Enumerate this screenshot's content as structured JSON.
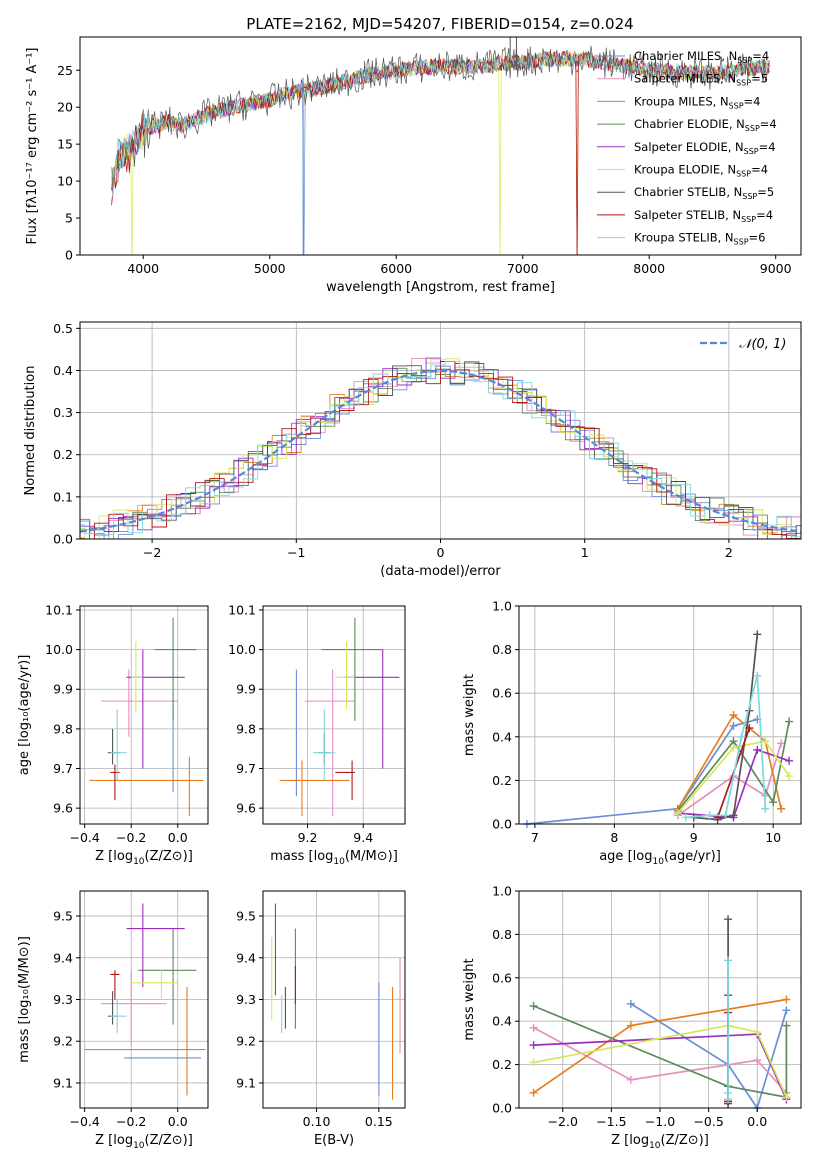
{
  "figure_title": "PLATE=2162, MJD=54207, FIBERID=0154, z=0.024",
  "colors": {
    "Chabrier MILES": "#6b8fd6",
    "Salpeter MILES": "#e58fc0",
    "Kroupa MILES": "#e87d1e",
    "Chabrier ELODIE": "#5c8a5c",
    "Salpeter ELODIE": "#9a2fbf",
    "Kroupa ELODIE": "#d6e85a",
    "Chabrier STELIB": "#555555",
    "Salpeter STELIB": "#b01818",
    "Kroupa STELIB": "#7fd8e0",
    "normal_fit": "#5588dd"
  },
  "chart_data": [
    {
      "id": "spectrum",
      "type": "line",
      "xlabel": "wavelength [Angstrom, rest frame]",
      "ylabel": "Flux [fλ10⁻¹⁷ erg cm⁻² s⁻¹ A⁻¹]",
      "xlim": [
        3500,
        9200
      ],
      "ylim": [
        0,
        29.5
      ],
      "xticks": [
        "4000",
        "5000",
        "6000",
        "7000",
        "8000",
        "9000"
      ],
      "yticks": [
        "0",
        "5",
        "10",
        "15",
        "20",
        "25"
      ],
      "legend": "right",
      "grid": false,
      "envelope": {
        "x": [
          3750,
          3800,
          3900,
          4000,
          4100,
          4200,
          4300,
          4500,
          4700,
          5000,
          5200,
          5500,
          5800,
          6000,
          6300,
          6600,
          6900,
          7200,
          7500,
          8000,
          8500,
          8900
        ],
        "y": [
          9,
          13,
          14,
          17,
          17.5,
          18,
          17.5,
          19,
          20,
          21,
          22,
          23,
          24.5,
          25,
          25.5,
          25.5,
          26,
          26.5,
          26.5,
          25,
          24.5,
          25.5
        ]
      },
      "series": [
        {
          "name": "Chabrier MILES, N_SSP=4",
          "name_base": "Chabrier MILES, N",
          "name_sub": "SSP",
          "name_val": "=4"
        },
        {
          "name": "Salpeter MILES, N_SSP=5",
          "name_base": "Salpeter MILES, N",
          "name_sub": "SSP",
          "name_val": "=5"
        },
        {
          "name": "Kroupa MILES, N_SSP=4",
          "name_base": "Kroupa MILES, N",
          "name_sub": "SSP",
          "name_val": "=4"
        },
        {
          "name": "Chabrier ELODIE, N_SSP=4",
          "name_base": "Chabrier ELODIE, N",
          "name_sub": "SSP",
          "name_val": "=4"
        },
        {
          "name": "Salpeter ELODIE, N_SSP=4",
          "name_base": "Salpeter ELODIE, N",
          "name_sub": "SSP",
          "name_val": "=4"
        },
        {
          "name": "Kroupa ELODIE, N_SSP=4",
          "name_base": "Kroupa ELODIE, N",
          "name_sub": "SSP",
          "name_val": "=4"
        },
        {
          "name": "Chabrier STELIB, N_SSP=5",
          "name_base": "Chabrier STELIB, N",
          "name_sub": "SSP",
          "name_val": "=5"
        },
        {
          "name": "Salpeter STELIB, N_SSP=4",
          "name_base": "Salpeter STELIB, N",
          "name_sub": "SSP",
          "name_val": "=4"
        },
        {
          "name": "Kroupa STELIB, N_SSP=6",
          "name_base": "Kroupa STELIB, N",
          "name_sub": "SSP",
          "name_val": "=6"
        }
      ]
    },
    {
      "id": "residuals",
      "type": "histogram",
      "xlabel": "(data-model)/error",
      "ylabel": "Normed distribution",
      "xlim": [
        -2.5,
        2.5
      ],
      "ylim": [
        0,
        0.515
      ],
      "xticks": [
        "−2",
        "−1",
        "0",
        "1",
        "2"
      ],
      "yticks": [
        "0.0",
        "0.1",
        "0.2",
        "0.3",
        "0.4",
        "0.5"
      ],
      "grid": true,
      "legend": "top-right",
      "reference": {
        "name": "𝒩(0, 1)",
        "mean": 0,
        "sigma": 1
      },
      "bin_width": 0.1
    },
    {
      "id": "age_vs_Z",
      "type": "errorbar",
      "xlabel_pre": "Z [log",
      "xlabel_sub": "10",
      "xlabel_post": "(Z/Z⊙)]",
      "ylabel": "age  [log₁₀(age/yr)]",
      "xlim": [
        -0.42,
        0.13
      ],
      "ylim": [
        9.56,
        10.11
      ],
      "xticks": [
        -0.4,
        -0.2,
        0.0
      ],
      "xtick_labels": [
        "−0.4",
        "−0.2",
        "0.0"
      ],
      "yticks": [
        9.6,
        9.7,
        9.8,
        9.9,
        10.0,
        10.1
      ],
      "ytick_labels": [
        "9.6",
        "9.7",
        "9.8",
        "9.9",
        "10.0",
        "10.1"
      ],
      "grid": true,
      "points": [
        {
          "series": "Chabrier MILES",
          "x": -0.02,
          "y": 9.73,
          "xl": 0.0,
          "xh": 0.0,
          "yl": 9.64,
          "yh": 9.86
        },
        {
          "series": "Salpeter MILES",
          "x": -0.21,
          "y": 9.87,
          "xl": -0.33,
          "xh": 0.0,
          "yl": 9.78,
          "yh": 9.95
        },
        {
          "series": "Kroupa MILES",
          "x": 0.05,
          "y": 9.67,
          "xl": -0.38,
          "xh": 0.11,
          "yl": 9.58,
          "yh": 9.73
        },
        {
          "series": "Chabrier ELODIE",
          "x": -0.02,
          "y": 10.0,
          "xl": -0.1,
          "xh": 0.08,
          "yl": 9.82,
          "yh": 10.08
        },
        {
          "series": "Salpeter ELODIE",
          "x": -0.15,
          "y": 9.93,
          "xl": -0.22,
          "xh": 0.03,
          "yl": 9.7,
          "yh": 10.0
        },
        {
          "series": "Kroupa ELODIE",
          "x": -0.18,
          "y": 9.93,
          "xl": -0.2,
          "xh": -0.15,
          "yl": 9.84,
          "yh": 10.02
        },
        {
          "series": "Chabrier STELIB",
          "x": -0.28,
          "y": 9.74,
          "xl": -0.3,
          "xh": -0.25,
          "yl": 9.71,
          "yh": 9.8
        },
        {
          "series": "Salpeter STELIB",
          "x": -0.27,
          "y": 9.69,
          "xl": -0.29,
          "xh": -0.25,
          "yl": 9.62,
          "yh": 9.71
        },
        {
          "series": "Kroupa STELIB",
          "x": -0.26,
          "y": 9.74,
          "xl": -0.29,
          "xh": -0.22,
          "yl": 9.67,
          "yh": 9.85
        }
      ]
    },
    {
      "id": "age_vs_mass",
      "type": "errorbar",
      "xlabel_pre": "mass [log",
      "xlabel_sub": "10",
      "xlabel_post": "(M/M⊙)]",
      "ylabel": "",
      "xlim": [
        9.04,
        9.55
      ],
      "ylim": [
        9.56,
        10.11
      ],
      "xticks": [
        9.2,
        9.4
      ],
      "xtick_labels": [
        "9.2",
        "9.4"
      ],
      "yticks": [
        9.6,
        9.7,
        9.8,
        9.9,
        10.0,
        10.1
      ],
      "ytick_labels": [
        "9.6",
        "9.7",
        "9.8",
        "9.9",
        "10.0",
        "10.1"
      ],
      "grid": true,
      "points": [
        {
          "series": "Chabrier MILES",
          "x": 9.16,
          "y": 9.73,
          "xl": 9.16,
          "xh": 9.16,
          "yl": 9.63,
          "yh": 9.95
        },
        {
          "series": "Salpeter MILES",
          "x": 9.29,
          "y": 9.87,
          "xl": 9.19,
          "xh": 9.37,
          "yl": 9.58,
          "yh": 9.95
        },
        {
          "series": "Kroupa MILES",
          "x": 9.18,
          "y": 9.67,
          "xl": 9.1,
          "xh": 9.35,
          "yl": 9.58,
          "yh": 9.72
        },
        {
          "series": "Chabrier ELODIE",
          "x": 9.37,
          "y": 10.0,
          "xl": 9.25,
          "xh": 9.47,
          "yl": 9.82,
          "yh": 10.08
        },
        {
          "series": "Salpeter ELODIE",
          "x": 9.47,
          "y": 9.93,
          "xl": 9.33,
          "xh": 9.53,
          "yl": 9.7,
          "yh": 10.0
        },
        {
          "series": "Kroupa ELODIE",
          "x": 9.34,
          "y": 9.93,
          "xl": 9.3,
          "xh": 9.37,
          "yl": 9.85,
          "yh": 10.02
        },
        {
          "series": "Chabrier STELIB",
          "x": 9.26,
          "y": 9.74,
          "xl": 9.24,
          "xh": 9.28,
          "yl": 9.71,
          "yh": 9.79
        },
        {
          "series": "Salpeter STELIB",
          "x": 9.36,
          "y": 9.69,
          "xl": 9.3,
          "xh": 9.37,
          "yl": 9.62,
          "yh": 9.72
        },
        {
          "series": "Kroupa STELIB",
          "x": 9.26,
          "y": 9.74,
          "xl": 9.22,
          "xh": 9.3,
          "yl": 9.67,
          "yh": 9.85
        }
      ]
    },
    {
      "id": "mass_weight_vs_age",
      "type": "line",
      "xlabel_pre": "age  [log",
      "xlabel_sub": "10",
      "xlabel_post": "(age/yr)]",
      "ylabel": "mass weight",
      "xlim": [
        6.8,
        10.35
      ],
      "ylim": [
        0,
        1.0
      ],
      "xticks": [
        7,
        8,
        9,
        10
      ],
      "xtick_labels": [
        "7",
        "8",
        "9",
        "10"
      ],
      "yticks": [
        0.0,
        0.2,
        0.4,
        0.6,
        0.8,
        1.0
      ],
      "ytick_labels": [
        "0.0",
        "0.2",
        "0.4",
        "0.6",
        "0.8",
        "1.0"
      ],
      "grid": true,
      "series": [
        {
          "series": "Chabrier MILES",
          "x": [
            6.9,
            8.8,
            9.5,
            9.8
          ],
          "y": [
            0.0,
            0.07,
            0.45,
            0.48
          ]
        },
        {
          "series": "Salpeter MILES",
          "x": [
            8.8,
            9.5,
            9.9,
            10.1
          ],
          "y": [
            0.04,
            0.22,
            0.13,
            0.37
          ]
        },
        {
          "series": "Kroupa MILES",
          "x": [
            8.8,
            9.5,
            9.9,
            10.1
          ],
          "y": [
            0.07,
            0.5,
            0.38,
            0.07
          ]
        },
        {
          "series": "Chabrier ELODIE",
          "x": [
            8.8,
            9.5,
            10.0,
            10.2
          ],
          "y": [
            0.06,
            0.38,
            0.1,
            0.47
          ]
        },
        {
          "series": "Salpeter ELODIE",
          "x": [
            8.8,
            9.5,
            9.8,
            10.2
          ],
          "y": [
            0.05,
            0.03,
            0.34,
            0.29
          ]
        },
        {
          "series": "Kroupa ELODIE",
          "x": [
            8.8,
            9.5,
            9.9,
            10.2
          ],
          "y": [
            0.05,
            0.35,
            0.38,
            0.22
          ]
        },
        {
          "series": "Chabrier STELIB",
          "x": [
            9.0,
            9.3,
            9.5,
            9.7,
            9.8
          ],
          "y": [
            0.03,
            0.02,
            0.04,
            0.52,
            0.87
          ]
        },
        {
          "series": "Salpeter STELIB",
          "x": [
            9.3,
            9.7
          ],
          "y": [
            0.03,
            0.44
          ]
        },
        {
          "series": "Kroupa STELIB",
          "x": [
            8.9,
            9.2,
            9.4,
            9.6,
            9.8,
            9.9
          ],
          "y": [
            0.03,
            0.04,
            0.04,
            0.4,
            0.68,
            0.07
          ]
        }
      ]
    },
    {
      "id": "mass_vs_Z",
      "type": "errorbar",
      "xlabel_pre": "Z [log",
      "xlabel_sub": "10",
      "xlabel_post": "(Z/Z⊙)]",
      "ylabel": "mass [log₁₀(M/M⊙)]",
      "xlim": [
        -0.42,
        0.13
      ],
      "ylim": [
        9.04,
        9.56
      ],
      "xticks": [
        -0.4,
        -0.2,
        0.0
      ],
      "xtick_labels": [
        "−0.4",
        "−0.2",
        "0.0"
      ],
      "yticks": [
        9.1,
        9.2,
        9.3,
        9.4,
        9.5
      ],
      "ytick_labels": [
        "9.1",
        "9.2",
        "9.3",
        "9.4",
        "9.5"
      ],
      "grid": true,
      "points": [
        {
          "series": "Chabrier MILES",
          "x": 0.05,
          "y": 9.16,
          "xl": -0.23,
          "xh": 0.1,
          "yl": 9.16,
          "yh": 9.16
        },
        {
          "series": "Salpeter MILES",
          "x": -0.2,
          "y": 9.29,
          "xl": -0.33,
          "xh": -0.05,
          "yl": 9.19,
          "yh": 9.37
        },
        {
          "series": "Kroupa MILES",
          "x": 0.04,
          "y": 9.18,
          "xl": -0.4,
          "xh": 0.12,
          "yl": 9.07,
          "yh": 9.33
        },
        {
          "series": "Chabrier ELODIE",
          "x": -0.02,
          "y": 9.37,
          "xl": -0.17,
          "xh": 0.08,
          "yl": 9.24,
          "yh": 9.47
        },
        {
          "series": "Salpeter ELODIE",
          "x": -0.15,
          "y": 9.47,
          "xl": -0.22,
          "xh": 0.03,
          "yl": 9.33,
          "yh": 9.53
        },
        {
          "series": "Kroupa ELODIE",
          "x": -0.07,
          "y": 9.34,
          "xl": -0.2,
          "xh": 0.0,
          "yl": 9.3,
          "yh": 9.37
        },
        {
          "series": "Chabrier STELIB",
          "x": -0.28,
          "y": 9.26,
          "xl": -0.3,
          "xh": -0.26,
          "yl": 9.24,
          "yh": 9.32
        },
        {
          "series": "Salpeter STELIB",
          "x": -0.27,
          "y": 9.36,
          "xl": -0.29,
          "xh": -0.25,
          "yl": 9.3,
          "yh": 9.37
        },
        {
          "series": "Kroupa STELIB",
          "x": -0.26,
          "y": 9.26,
          "xl": -0.29,
          "xh": -0.22,
          "yl": 9.22,
          "yh": 9.3
        }
      ]
    },
    {
      "id": "mass_vs_ebv",
      "type": "errorbar",
      "xlabel": "E(B-V)",
      "ylabel": "",
      "xlim": [
        0.057,
        0.171
      ],
      "ylim": [
        9.04,
        9.56
      ],
      "xticks": [
        0.1,
        0.15
      ],
      "xtick_labels": [
        "0.10",
        "0.15"
      ],
      "yticks": [
        9.1,
        9.2,
        9.3,
        9.4,
        9.5
      ],
      "ytick_labels": [
        "9.1",
        "9.2",
        "9.3",
        "9.4",
        "9.5"
      ],
      "grid": true,
      "points": [
        {
          "series": "Chabrier MILES",
          "x": 0.15,
          "y": 9.2,
          "xl": 0.15,
          "xh": 0.15,
          "yl": 9.07,
          "yh": 9.34
        },
        {
          "series": "Salpeter MILES",
          "x": 0.167,
          "y": 9.28,
          "xl": 0.167,
          "xh": 0.167,
          "yl": 9.17,
          "yh": 9.4
        },
        {
          "series": "Kroupa MILES",
          "x": 0.161,
          "y": 9.2,
          "xl": 0.161,
          "xh": 0.161,
          "yl": 9.06,
          "yh": 9.33
        },
        {
          "series": "Chabrier ELODIE",
          "x": 0.083,
          "y": 9.35,
          "xl": 0.083,
          "xh": 0.083,
          "yl": 9.23,
          "yh": 9.47
        },
        {
          "series": "Salpeter ELODIE",
          "x": 0.067,
          "y": 9.43,
          "xl": 0.067,
          "xh": 0.067,
          "yl": 9.31,
          "yh": 9.53
        },
        {
          "series": "Kroupa ELODIE",
          "x": 0.064,
          "y": 9.35,
          "xl": 0.064,
          "xh": 0.064,
          "yl": 9.25,
          "yh": 9.45
        },
        {
          "series": "Chabrier STELIB",
          "x": 0.075,
          "y": 9.28,
          "xl": 0.075,
          "xh": 0.075,
          "yl": 9.23,
          "yh": 9.33
        },
        {
          "series": "Salpeter STELIB",
          "x": 0.083,
          "y": 9.33,
          "xl": 0.083,
          "xh": 0.083,
          "yl": 9.29,
          "yh": 9.38
        },
        {
          "series": "Kroupa STELIB",
          "x": 0.072,
          "y": 9.27,
          "xl": 0.072,
          "xh": 0.072,
          "yl": 9.22,
          "yh": 9.31
        }
      ]
    },
    {
      "id": "mass_weight_vs_Z",
      "type": "line",
      "xlabel_pre": "Z [log",
      "xlabel_sub": "10",
      "xlabel_post": "(Z/Z⊙)]",
      "ylabel": "mass weight",
      "xlim": [
        -2.45,
        0.45
      ],
      "ylim": [
        0,
        1.0
      ],
      "xticks": [
        -2.0,
        -1.5,
        -1.0,
        -0.5,
        0.0
      ],
      "xtick_labels": [
        "−2.0",
        "−1.5",
        "−1.0",
        "−0.5",
        "0.0"
      ],
      "yticks": [
        0.0,
        0.2,
        0.4,
        0.6,
        0.8,
        1.0
      ],
      "ytick_labels": [
        "0.0",
        "0.2",
        "0.4",
        "0.6",
        "0.8",
        "1.0"
      ],
      "grid": true,
      "series": [
        {
          "series": "Chabrier MILES",
          "x": [
            -1.3,
            -0.3,
            0.0,
            0.3
          ],
          "y": [
            0.48,
            0.2,
            0.0,
            0.45
          ]
        },
        {
          "series": "Salpeter MILES",
          "x": [
            -2.3,
            -1.3,
            0.0,
            0.3
          ],
          "y": [
            0.37,
            0.13,
            0.22,
            0.07
          ]
        },
        {
          "series": "Kroupa MILES",
          "x": [
            -2.3,
            -1.3,
            0.3
          ],
          "y": [
            0.07,
            0.38,
            0.5
          ]
        },
        {
          "series": "Chabrier ELODIE",
          "x": [
            -2.3,
            -0.3,
            0.3,
            0.3
          ],
          "y": [
            0.47,
            0.1,
            0.05,
            0.38
          ]
        },
        {
          "series": "Salpeter ELODIE",
          "x": [
            -2.3,
            0.0,
            0.3
          ],
          "y": [
            0.29,
            0.34,
            0.04
          ]
        },
        {
          "series": "Kroupa ELODIE",
          "x": [
            -2.3,
            -0.3,
            0.0,
            0.3
          ],
          "y": [
            0.21,
            0.38,
            0.35,
            0.05
          ]
        },
        {
          "series": "Chabrier STELIB",
          "x": [
            -0.3,
            -0.3,
            -0.3,
            -0.3
          ],
          "y": [
            0.02,
            0.52,
            0.87,
            0.03
          ]
        },
        {
          "series": "Salpeter STELIB",
          "x": [
            -0.3,
            -0.3
          ],
          "y": [
            0.03,
            0.44
          ]
        },
        {
          "series": "Kroupa STELIB",
          "x": [
            -0.3,
            -0.3,
            -0.3
          ],
          "y": [
            0.04,
            0.68,
            0.07
          ]
        }
      ]
    }
  ]
}
